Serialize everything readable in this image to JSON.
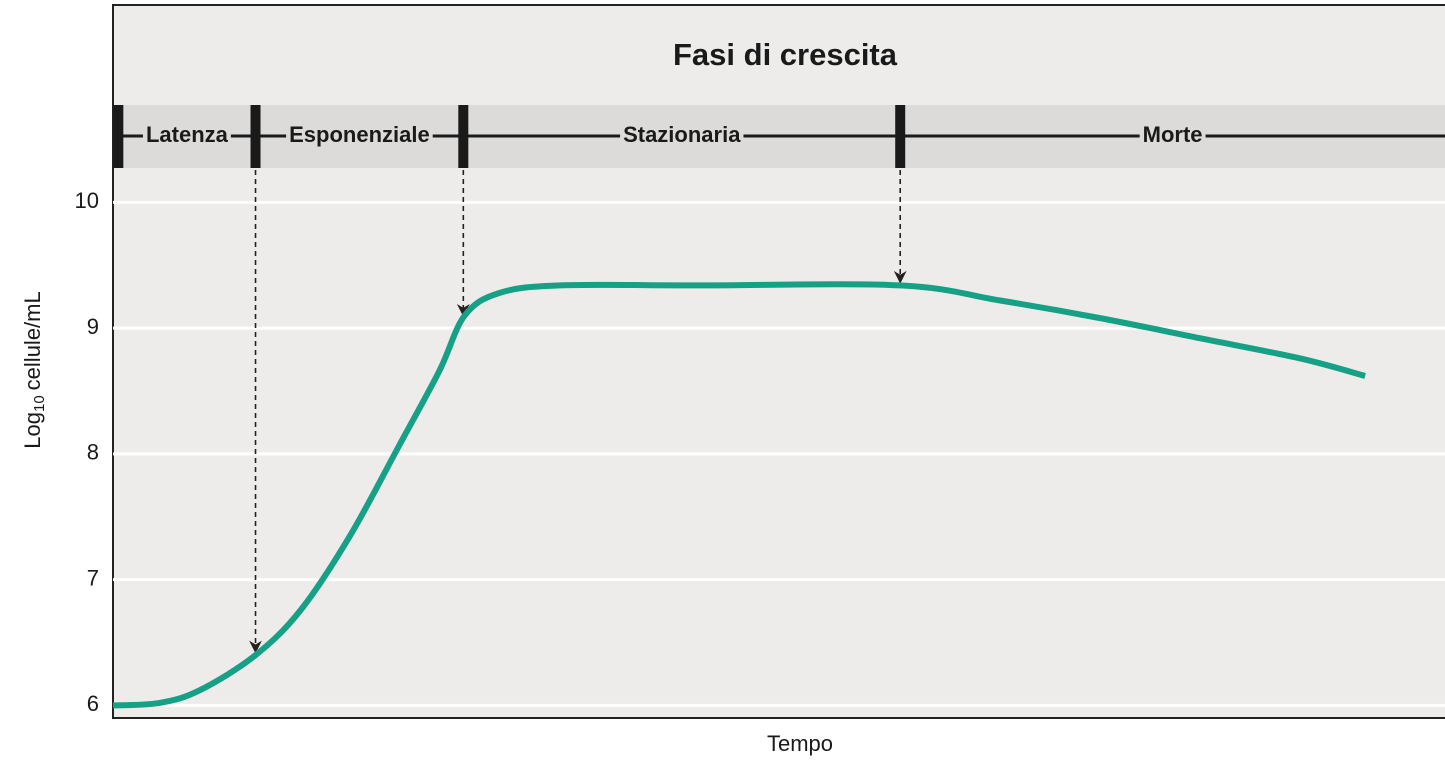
{
  "chart_data": {
    "type": "line",
    "title": "Fasi di crescita",
    "xlabel": "Tempo",
    "ylabel": {
      "base": "Log",
      "subscript": "10",
      "rest": "cellule/mL"
    },
    "x": [
      0,
      3.5,
      6.5,
      10.7,
      14.1,
      17.8,
      21.5,
      24.5,
      26.4,
      29.0,
      33.6,
      44.1,
      59.1,
      66.6,
      74.1,
      81.6,
      89.1,
      94.0
    ],
    "series": [
      {
        "name": "Log10 cellule/mL",
        "color": "#16a086",
        "values": [
          6.0,
          6.02,
          6.12,
          6.4,
          6.76,
          7.35,
          8.07,
          8.66,
          9.1,
          9.28,
          9.34,
          9.34,
          9.34,
          9.22,
          9.08,
          8.92,
          8.76,
          8.62
        ]
      }
    ],
    "xlim": [
      0,
      100
    ],
    "ylim": [
      5.9,
      11.57
    ],
    "yticks": [
      6,
      7,
      8,
      9,
      10
    ],
    "grid": true,
    "phases": {
      "labels": [
        "Latenza",
        "Esponenziale",
        "Stazionaria",
        "Morte"
      ],
      "starts": [
        0.4,
        10.7,
        26.3,
        59.1
      ]
    }
  }
}
